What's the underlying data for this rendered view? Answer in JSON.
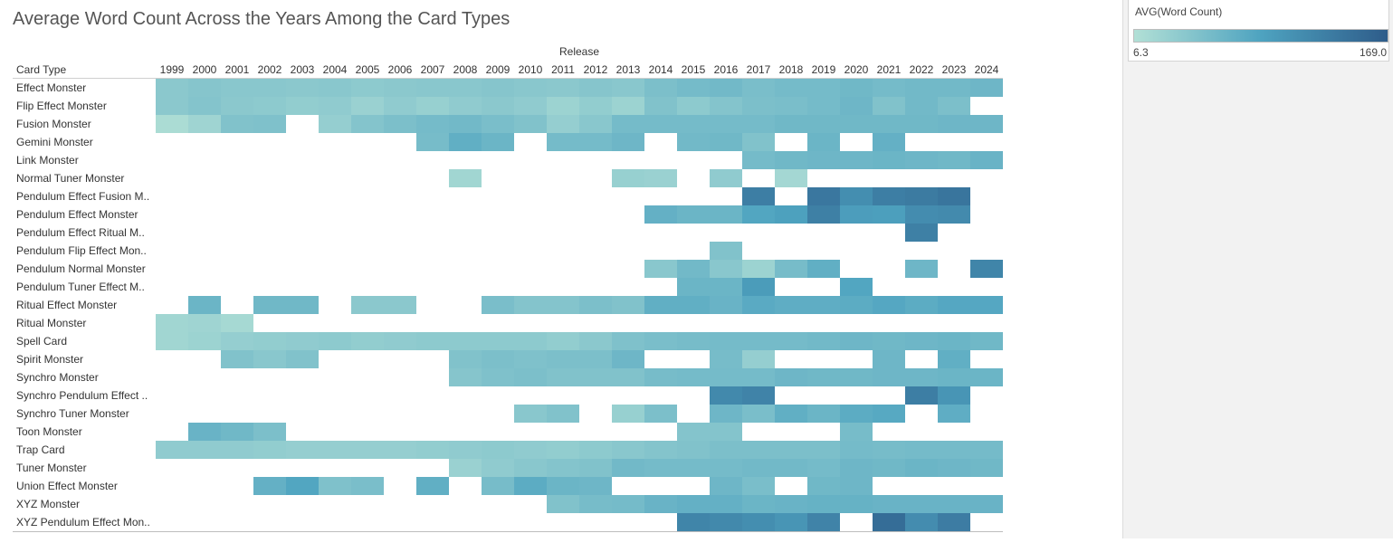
{
  "chart_data": {
    "type": "heatmap",
    "title": "Average Word Count Across the Years Among the Card Types",
    "x_header": "Release",
    "y_header": "Card Type",
    "measure": "AVG(Word Count)",
    "color_range": [
      6.3,
      169.0
    ],
    "color_range_labels": [
      "6.3",
      "169.0"
    ],
    "colors": [
      "#b2e0d6",
      "#2e5c8a"
    ],
    "x": [
      "1999",
      "2000",
      "2001",
      "2002",
      "2003",
      "2004",
      "2005",
      "2006",
      "2007",
      "2008",
      "2009",
      "2010",
      "2011",
      "2012",
      "2013",
      "2014",
      "2015",
      "2016",
      "2017",
      "2018",
      "2019",
      "2020",
      "2021",
      "2022",
      "2023",
      "2024"
    ],
    "y": [
      "Effect Monster",
      "Flip Effect Monster",
      "Fusion Monster",
      "Gemini Monster",
      "Link Monster",
      "Normal Tuner Monster",
      "Pendulum Effect Fusion M..",
      "Pendulum Effect Monster",
      "Pendulum Effect Ritual M..",
      "Pendulum Flip Effect Mon..",
      "Pendulum Normal Monster",
      "Pendulum Tuner Effect M..",
      "Ritual Effect Monster",
      "Ritual Monster",
      "Spell Card",
      "Spirit Monster",
      "Synchro Monster",
      "Synchro Pendulum Effect ..",
      "Synchro Tuner Monster",
      "Toon Monster",
      "Trap Card",
      "Tuner Monster",
      "Union Effect Monster",
      "XYZ Monster",
      "XYZ Pendulum Effect Mon.."
    ],
    "values": [
      [
        38,
        42,
        40,
        40,
        38,
        40,
        36,
        38,
        40,
        40,
        42,
        40,
        38,
        42,
        40,
        50,
        56,
        58,
        52,
        56,
        56,
        60,
        56,
        58,
        58,
        62
      ],
      [
        38,
        44,
        38,
        36,
        32,
        34,
        26,
        34,
        28,
        34,
        38,
        34,
        24,
        32,
        24,
        46,
        36,
        44,
        50,
        52,
        56,
        62,
        46,
        58,
        50,
        null
      ],
      [
        12,
        22,
        46,
        48,
        null,
        30,
        44,
        50,
        56,
        58,
        52,
        46,
        30,
        40,
        56,
        56,
        56,
        56,
        56,
        60,
        60,
        60,
        60,
        60,
        62,
        62
      ],
      [
        null,
        null,
        null,
        null,
        null,
        null,
        null,
        null,
        54,
        72,
        64,
        null,
        56,
        56,
        62,
        null,
        58,
        60,
        46,
        null,
        64,
        null,
        70,
        null,
        null,
        null
      ],
      [
        null,
        null,
        null,
        null,
        null,
        null,
        null,
        null,
        null,
        null,
        null,
        null,
        null,
        null,
        null,
        null,
        null,
        null,
        56,
        60,
        62,
        62,
        64,
        62,
        60,
        66
      ],
      [
        null,
        null,
        null,
        null,
        null,
        null,
        null,
        null,
        null,
        20,
        null,
        null,
        null,
        null,
        28,
        26,
        null,
        34,
        null,
        18,
        null,
        null,
        null,
        null,
        null,
        null
      ],
      [
        null,
        null,
        null,
        null,
        null,
        null,
        null,
        null,
        null,
        null,
        null,
        null,
        null,
        null,
        null,
        null,
        null,
        null,
        130,
        null,
        138,
        112,
        130,
        134,
        140,
        null
      ],
      [
        null,
        null,
        null,
        null,
        null,
        null,
        null,
        null,
        null,
        null,
        null,
        null,
        null,
        null,
        null,
        70,
        64,
        64,
        84,
        90,
        128,
        94,
        92,
        114,
        116,
        null
      ],
      [
        null,
        null,
        null,
        null,
        null,
        null,
        null,
        null,
        null,
        null,
        null,
        null,
        null,
        null,
        null,
        null,
        null,
        null,
        null,
        null,
        null,
        null,
        null,
        128,
        null,
        null
      ],
      [
        null,
        null,
        null,
        null,
        null,
        null,
        null,
        null,
        null,
        null,
        null,
        null,
        null,
        null,
        null,
        null,
        null,
        46,
        null,
        null,
        null,
        null,
        null,
        null,
        null,
        null
      ],
      [
        null,
        null,
        null,
        null,
        null,
        null,
        null,
        null,
        null,
        null,
        null,
        null,
        null,
        null,
        null,
        40,
        58,
        40,
        24,
        54,
        72,
        null,
        null,
        62,
        null,
        122
      ],
      [
        null,
        null,
        null,
        null,
        null,
        null,
        null,
        null,
        null,
        null,
        null,
        null,
        null,
        null,
        null,
        null,
        64,
        64,
        96,
        null,
        null,
        84,
        null,
        null,
        null,
        null
      ],
      [
        null,
        64,
        null,
        60,
        60,
        null,
        38,
        38,
        null,
        null,
        52,
        44,
        44,
        50,
        46,
        72,
        72,
        66,
        78,
        74,
        74,
        76,
        82,
        76,
        82,
        82
      ],
      [
        20,
        22,
        16,
        null,
        null,
        null,
        null,
        null,
        null,
        null,
        null,
        null,
        null,
        null,
        null,
        null,
        null,
        null,
        null,
        null,
        null,
        null,
        null,
        null,
        null,
        null
      ],
      [
        20,
        24,
        30,
        32,
        34,
        36,
        32,
        34,
        36,
        36,
        36,
        36,
        32,
        38,
        48,
        52,
        54,
        56,
        56,
        56,
        58,
        62,
        60,
        62,
        64,
        60
      ],
      [
        null,
        null,
        46,
        40,
        46,
        null,
        null,
        null,
        null,
        46,
        50,
        48,
        50,
        50,
        62,
        null,
        null,
        54,
        30,
        null,
        null,
        null,
        62,
        null,
        72,
        null
      ],
      [
        null,
        null,
        null,
        null,
        null,
        null,
        null,
        null,
        null,
        42,
        48,
        50,
        46,
        46,
        46,
        54,
        56,
        56,
        56,
        62,
        60,
        60,
        62,
        62,
        64,
        64
      ],
      [
        null,
        null,
        null,
        null,
        null,
        null,
        null,
        null,
        null,
        null,
        null,
        null,
        null,
        null,
        null,
        null,
        null,
        118,
        124,
        null,
        null,
        null,
        null,
        130,
        104,
        null
      ],
      [
        null,
        null,
        null,
        null,
        null,
        null,
        null,
        null,
        null,
        null,
        null,
        40,
        46,
        null,
        28,
        50,
        null,
        62,
        52,
        72,
        64,
        76,
        80,
        null,
        74,
        null
      ],
      [
        null,
        66,
        60,
        50,
        null,
        null,
        null,
        null,
        null,
        null,
        null,
        null,
        null,
        null,
        null,
        null,
        44,
        44,
        null,
        null,
        null,
        54,
        null,
        null,
        null,
        null
      ],
      [
        34,
        34,
        34,
        32,
        30,
        30,
        30,
        30,
        32,
        34,
        36,
        34,
        32,
        36,
        40,
        44,
        46,
        50,
        50,
        50,
        50,
        56,
        54,
        56,
        56,
        56
      ],
      [
        null,
        null,
        null,
        null,
        null,
        null,
        null,
        null,
        null,
        26,
        34,
        40,
        44,
        46,
        58,
        56,
        56,
        56,
        58,
        58,
        56,
        62,
        60,
        64,
        62,
        60
      ],
      [
        null,
        null,
        null,
        70,
        84,
        48,
        52,
        null,
        72,
        null,
        54,
        76,
        64,
        62,
        null,
        null,
        null,
        62,
        52,
        null,
        60,
        62,
        null,
        null,
        null,
        null
      ],
      [
        null,
        null,
        null,
        null,
        null,
        null,
        null,
        null,
        null,
        null,
        null,
        null,
        46,
        54,
        56,
        66,
        70,
        70,
        64,
        66,
        68,
        68,
        66,
        66,
        66,
        66
      ],
      [
        null,
        null,
        null,
        null,
        null,
        null,
        null,
        null,
        null,
        null,
        null,
        null,
        null,
        null,
        null,
        null,
        122,
        118,
        112,
        104,
        124,
        null,
        150,
        114,
        132,
        null
      ]
    ]
  }
}
